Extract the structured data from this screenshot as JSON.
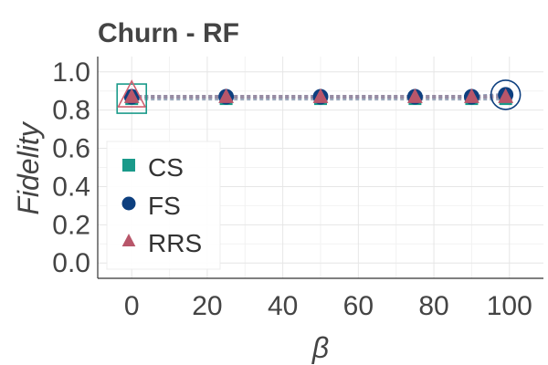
{
  "chart_data": {
    "type": "line",
    "title": "Churn - RF",
    "xlabel": "β",
    "ylabel": "Fidelity",
    "xlim": [
      -9,
      109
    ],
    "ylim": [
      -0.08,
      1.08
    ],
    "x_ticks": [
      0,
      20,
      40,
      60,
      80,
      100
    ],
    "y_ticks": [
      0.0,
      0.2,
      0.4,
      0.6,
      0.8,
      1.0
    ],
    "x_tick_labels": [
      "0",
      "20",
      "40",
      "60",
      "80",
      "100"
    ],
    "y_tick_labels": [
      "0.0",
      "0.2",
      "0.4",
      "0.6",
      "0.8",
      "1.0"
    ],
    "grid": true,
    "legend_position": "lower-left",
    "x": [
      0,
      25,
      50,
      75,
      90,
      99
    ],
    "series": [
      {
        "name": "CS",
        "marker": "square",
        "color": "#1a9a8a",
        "line_color": "#8a9ab0",
        "values": [
          0.86,
          0.86,
          0.86,
          0.86,
          0.86,
          0.86
        ]
      },
      {
        "name": "FS",
        "marker": "circle",
        "color": "#0d3f7f",
        "line_color": "#7a8aa8",
        "values": [
          0.87,
          0.87,
          0.87,
          0.87,
          0.87,
          0.88
        ]
      },
      {
        "name": "RRS",
        "marker": "triangle",
        "color": "#b8566a",
        "line_color": "#9a8aa0",
        "values": [
          0.87,
          0.87,
          0.87,
          0.87,
          0.87,
          0.87
        ]
      }
    ],
    "highlights": [
      {
        "series": "CS",
        "x": 0,
        "y": 0.86,
        "shape": "square",
        "color": "#1a9a8a"
      },
      {
        "series": "RRS",
        "x": 0,
        "y": 0.87,
        "shape": "triangle",
        "color": "#d06070"
      },
      {
        "series": "FS",
        "x": 99,
        "y": 0.88,
        "shape": "circle",
        "color": "#0d3f7f"
      }
    ]
  }
}
